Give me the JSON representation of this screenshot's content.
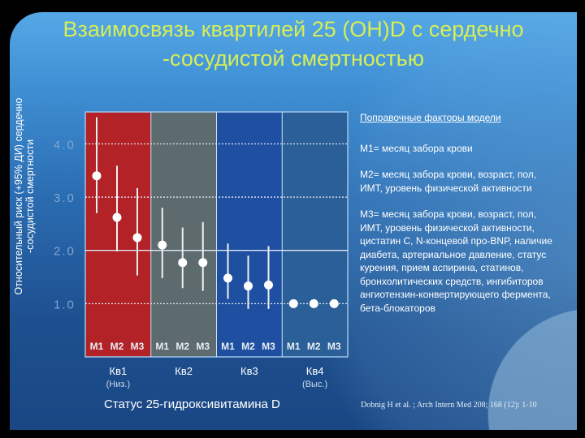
{
  "title": "Взаимосвязь квартилей 25 (OH)D с сердечно -сосудистой смертностью",
  "legend": {
    "heading": "Поправочные факторы модели",
    "items": [
      "М1= месяц забора крови",
      "М2= месяц забора крови, возраст, пол, ИМТ, уровень физической активности",
      "М3= месяц забора крови, возраст, пол, ИМТ, уровень физической активности, цистатин С, N-концевой про-BNP, наличие диабета, артериальное давление, статус курения, прием аспирина, статинов, бронхолитических средств, ингибиторов ангиотензин-конвертирующего фермента, бета-блокаторов"
    ]
  },
  "citation": "Dobnig H et al. ; Arch Intern Med 208; 168 (12): 1-10",
  "chart_data": {
    "type": "scatter",
    "title": "",
    "ylabel": "Относительный риск (+95% ДИ) сердечно -сосудистой смертности",
    "xlabel": "Статус 25-гидроксивитамина D",
    "ylim": [
      0,
      4.6
    ],
    "yticks": [
      "1.0",
      "2.0",
      "3.0",
      "4.0"
    ],
    "ytick_values": [
      1,
      2,
      3,
      4
    ],
    "grid": true,
    "groups": [
      {
        "label": "Кв1",
        "sublabel": "(Низ.)",
        "color": "#b22226",
        "points": [
          {
            "model": "M1",
            "value": 3.4,
            "ci": [
              2.7,
              4.5
            ]
          },
          {
            "model": "M2",
            "value": 2.62,
            "ci": [
              1.98,
              3.59
            ]
          },
          {
            "model": "M3",
            "value": 2.24,
            "ci": [
              1.53,
              3.17
            ]
          }
        ]
      },
      {
        "label": "Кв2",
        "sublabel": "",
        "color": "#5d6b6e",
        "points": [
          {
            "model": "M1",
            "value": 2.1,
            "ci": [
              1.48,
              2.8
            ]
          },
          {
            "model": "M2",
            "value": 1.77,
            "ci": [
              1.29,
              2.43
            ]
          },
          {
            "model": "M3",
            "value": 1.77,
            "ci": [
              1.24,
              2.53
            ]
          }
        ]
      },
      {
        "label": "Кв3",
        "sublabel": "",
        "color": "#1f4fa0",
        "points": [
          {
            "model": "M1",
            "value": 1.48,
            "ci": [
              1.09,
              2.13
            ]
          },
          {
            "model": "M2",
            "value": 1.33,
            "ci": [
              0.9,
              1.9
            ]
          },
          {
            "model": "M3",
            "value": 1.35,
            "ci": [
              0.9,
              2.08
            ]
          }
        ]
      },
      {
        "label": "Кв4",
        "sublabel": "(Выс.)",
        "color": "#2a5f98",
        "points": [
          {
            "model": "M1",
            "value": 1.0,
            "ci": null
          },
          {
            "model": "M2",
            "value": 1.0,
            "ci": null
          },
          {
            "model": "M3",
            "value": 1.0,
            "ci": null
          }
        ]
      }
    ]
  }
}
